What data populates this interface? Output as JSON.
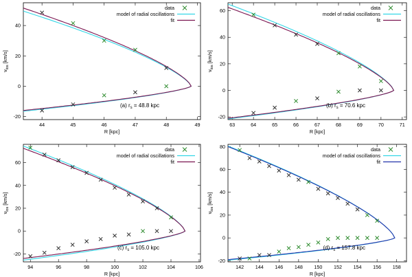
{
  "colors": {
    "data": "#2e8b2e",
    "model": "#33d6e6",
    "fit": "#7a1450",
    "fit_blue": "#2233aa",
    "marker_dark": "#333333"
  },
  "legend": {
    "data": "data",
    "model": "model of radial oscillations",
    "fit": "fit"
  },
  "chart_data": [
    {
      "type": "line",
      "panel": "a",
      "annotation": "(a) r",
      "annotation_sub": "s",
      "annotation_value": " = 48.8 kpc",
      "xlabel": "R [kpc]",
      "ylabel": "v",
      "ylabel_sub": "los",
      "ylabel_unit": " [km/s]",
      "xlim": [
        43.4,
        49.1
      ],
      "ylim": [
        -22,
        55
      ],
      "xticks": [
        44,
        45,
        46,
        47,
        48,
        49
      ],
      "yticks": [
        -20,
        0,
        20,
        40
      ],
      "turn": 48.8,
      "model": {
        "upper_amp": 49.5,
        "lower_amp": 16.5,
        "exp": 0.72,
        "rmin": 43.4
      },
      "fit": {
        "upper_amp": 51.5,
        "lower_amp": 16.0,
        "exp": 0.72,
        "rmin": 43.4,
        "color": "fit"
      },
      "points": [
        {
          "x": 44,
          "y": 48.5,
          "m": "dark"
        },
        {
          "x": 45,
          "y": 41.5,
          "m": "green"
        },
        {
          "x": 46,
          "y": 30,
          "m": "green"
        },
        {
          "x": 47,
          "y": 24,
          "m": "green"
        },
        {
          "x": 48,
          "y": 12,
          "m": "dark"
        },
        {
          "x": 44,
          "y": -16,
          "m": "dark"
        },
        {
          "x": 45,
          "y": -12,
          "m": "dark"
        },
        {
          "x": 46,
          "y": -6,
          "m": "green"
        },
        {
          "x": 47,
          "y": -4,
          "m": "dark"
        },
        {
          "x": 48,
          "y": 0,
          "m": "green"
        }
      ]
    },
    {
      "type": "line",
      "panel": "b",
      "annotation": "(b) r",
      "annotation_sub": "s",
      "annotation_value": " = 70.6 kpc",
      "xlabel": "R [kpc]",
      "ylabel": "v",
      "ylabel_sub": "los",
      "ylabel_unit": " [km/s]",
      "xlim": [
        62.8,
        71.2
      ],
      "ylim": [
        -22,
        66
      ],
      "xticks": [
        63,
        64,
        65,
        66,
        67,
        68,
        69,
        70,
        71
      ],
      "yticks": [
        -20,
        0,
        20,
        40,
        60
      ],
      "turn": 70.6,
      "model": {
        "upper_amp": 65,
        "lower_amp": 21.5,
        "exp": 0.72,
        "rmin": 62.8
      },
      "fit": {
        "upper_amp": 62.5,
        "lower_amp": 21.0,
        "exp": 0.72,
        "rmin": 62.8,
        "color": "fit"
      },
      "points": [
        {
          "x": 64,
          "y": 57,
          "m": "green"
        },
        {
          "x": 65,
          "y": 49,
          "m": "dark"
        },
        {
          "x": 66,
          "y": 42,
          "m": "dark"
        },
        {
          "x": 67,
          "y": 35,
          "m": "dark"
        },
        {
          "x": 68,
          "y": 28,
          "m": "green"
        },
        {
          "x": 69,
          "y": 18,
          "m": "green"
        },
        {
          "x": 70,
          "y": 7,
          "m": "green"
        },
        {
          "x": 64,
          "y": -17,
          "m": "dark"
        },
        {
          "x": 65,
          "y": -13,
          "m": "dark"
        },
        {
          "x": 66,
          "y": -8,
          "m": "green"
        },
        {
          "x": 67,
          "y": -6,
          "m": "dark"
        },
        {
          "x": 68,
          "y": -1,
          "m": "green"
        },
        {
          "x": 69,
          "y": 0,
          "m": "dark"
        },
        {
          "x": 70,
          "y": 0,
          "m": "dark"
        }
      ]
    },
    {
      "type": "line",
      "panel": "c",
      "annotation": "(c) r",
      "annotation_sub": "s",
      "annotation_value": " = 105.0 kpc",
      "xlabel": "R [kpc]",
      "ylabel": "v",
      "ylabel_sub": "los",
      "ylabel_unit": " [km/s]",
      "xlim": [
        93.5,
        106.1
      ],
      "ylim": [
        -27,
        76
      ],
      "xticks": [
        94,
        96,
        98,
        100,
        102,
        104,
        106
      ],
      "yticks": [
        -20,
        0,
        20,
        40,
        60
      ],
      "turn": 105.0,
      "model": {
        "upper_amp": 74.5,
        "lower_amp": 25.5,
        "exp": 0.72,
        "rmin": 93.5
      },
      "fit": {
        "upper_amp": 72.5,
        "lower_amp": 24.0,
        "exp": 0.72,
        "rmin": 93.5,
        "color": "fit"
      },
      "points": [
        {
          "x": 94,
          "y": 73,
          "m": "green"
        },
        {
          "x": 95,
          "y": 67,
          "m": "dark"
        },
        {
          "x": 96,
          "y": 62,
          "m": "dark"
        },
        {
          "x": 97,
          "y": 56,
          "m": "dark"
        },
        {
          "x": 98,
          "y": 51,
          "m": "dark"
        },
        {
          "x": 99,
          "y": 45,
          "m": "dark"
        },
        {
          "x": 100,
          "y": 38,
          "m": "dark"
        },
        {
          "x": 101,
          "y": 32,
          "m": "dark"
        },
        {
          "x": 102,
          "y": 26,
          "m": "dark"
        },
        {
          "x": 103,
          "y": 20,
          "m": "dark"
        },
        {
          "x": 104,
          "y": 12,
          "m": "green"
        },
        {
          "x": 94,
          "y": -22,
          "m": "dark"
        },
        {
          "x": 95,
          "y": -19,
          "m": "dark"
        },
        {
          "x": 96,
          "y": -15,
          "m": "dark"
        },
        {
          "x": 97,
          "y": -12,
          "m": "dark"
        },
        {
          "x": 98,
          "y": -9,
          "m": "dark"
        },
        {
          "x": 99,
          "y": -7,
          "m": "dark"
        },
        {
          "x": 100,
          "y": -4,
          "m": "dark"
        },
        {
          "x": 101,
          "y": -3,
          "m": "dark"
        },
        {
          "x": 102,
          "y": 0,
          "m": "green"
        },
        {
          "x": 103,
          "y": 0,
          "m": "dark"
        },
        {
          "x": 104,
          "y": 0,
          "m": "dark"
        }
      ]
    },
    {
      "type": "line",
      "panel": "d",
      "annotation": "(d) r",
      "annotation_sub": "s",
      "annotation_value": " = 157.8 kpc",
      "xlabel": "R [kpc]",
      "ylabel": "v",
      "ylabel_sub": "los",
      "ylabel_unit": " [km/s]",
      "xlim": [
        140.8,
        159
      ],
      "ylim": [
        -21,
        82
      ],
      "xticks": [
        142,
        144,
        146,
        148,
        150,
        152,
        154,
        156,
        158
      ],
      "yticks": [
        -20,
        0,
        20,
        40,
        60,
        80
      ],
      "turn": 157.8,
      "model": {
        "upper_amp": 80.5,
        "lower_amp": 19.5,
        "exp": 0.72,
        "rmin": 140.8
      },
      "fit": {
        "upper_amp": 80.0,
        "lower_amp": 19.0,
        "exp": 0.72,
        "rmin": 140.8,
        "color": "fit_blue"
      },
      "points": [
        {
          "x": 142,
          "y": 77,
          "m": "green"
        },
        {
          "x": 143,
          "y": 70,
          "m": "dark"
        },
        {
          "x": 144,
          "y": 67,
          "m": "dark"
        },
        {
          "x": 145,
          "y": 63,
          "m": "dark"
        },
        {
          "x": 146,
          "y": 59,
          "m": "dark"
        },
        {
          "x": 147,
          "y": 55,
          "m": "dark"
        },
        {
          "x": 148,
          "y": 51,
          "m": "dark"
        },
        {
          "x": 149,
          "y": 49,
          "m": "green"
        },
        {
          "x": 150,
          "y": 43,
          "m": "dark"
        },
        {
          "x": 151,
          "y": 39,
          "m": "dark"
        },
        {
          "x": 152,
          "y": 35,
          "m": "dark"
        },
        {
          "x": 153,
          "y": 30,
          "m": "dark"
        },
        {
          "x": 154,
          "y": 25,
          "m": "dark"
        },
        {
          "x": 155,
          "y": 20,
          "m": "green"
        },
        {
          "x": 156,
          "y": 15,
          "m": "green"
        },
        {
          "x": 142,
          "y": -18,
          "m": "dark"
        },
        {
          "x": 143,
          "y": -18,
          "m": "green"
        },
        {
          "x": 144,
          "y": -15,
          "m": "dark"
        },
        {
          "x": 145,
          "y": -15,
          "m": "dark"
        },
        {
          "x": 146,
          "y": -12,
          "m": "green"
        },
        {
          "x": 147,
          "y": -9,
          "m": "green"
        },
        {
          "x": 148,
          "y": -8,
          "m": "green"
        },
        {
          "x": 149,
          "y": -6,
          "m": "green"
        },
        {
          "x": 150,
          "y": -4,
          "m": "green"
        },
        {
          "x": 151,
          "y": -1,
          "m": "green"
        },
        {
          "x": 152,
          "y": 0,
          "m": "green"
        },
        {
          "x": 153,
          "y": 0,
          "m": "green"
        },
        {
          "x": 154,
          "y": 0,
          "m": "green"
        },
        {
          "x": 155,
          "y": 0,
          "m": "green"
        },
        {
          "x": 156,
          "y": 0,
          "m": "green"
        }
      ]
    }
  ]
}
